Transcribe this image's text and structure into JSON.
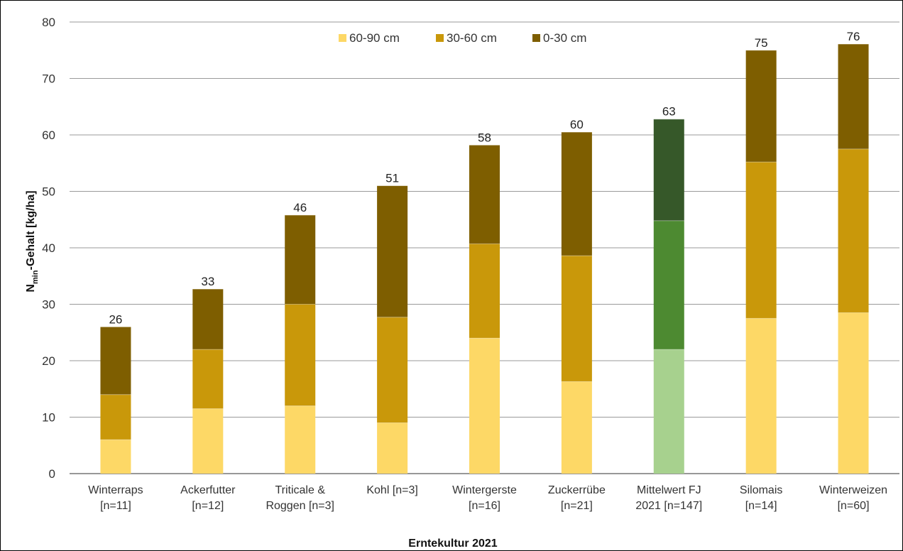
{
  "chart_data": {
    "type": "bar",
    "stacked": true,
    "xlabel": "Erntekultur 2021",
    "ylabel": "Gehalt [kg/ha]",
    "ylabel_prefix": "N",
    "ylabel_subscript": "min",
    "ylim": [
      0,
      80
    ],
    "yticks": [
      0,
      10,
      20,
      30,
      40,
      50,
      60,
      70,
      80
    ],
    "grid": true,
    "legend_position": "top-center",
    "categories": [
      [
        "Winterraps",
        "[n=11]"
      ],
      [
        "Ackerfutter",
        "[n=12]"
      ],
      [
        "Triticale  &",
        "Roggen [n=3]"
      ],
      [
        "Kohl [n=3]"
      ],
      [
        "Wintergerste",
        "[n=16]"
      ],
      [
        "Zuckerrübe",
        "[n=21]"
      ],
      [
        "Mittelwert FJ",
        "2021 [n=147]"
      ],
      [
        "Silomais",
        "[n=14]"
      ],
      [
        "Winterweizen",
        "[n=60]"
      ]
    ],
    "series": [
      {
        "name": "60-90 cm",
        "color": "#fdd866",
        "values": [
          6,
          11.5,
          12,
          9,
          24,
          16.3,
          22,
          27.5,
          28.5
        ]
      },
      {
        "name": "30-60 cm",
        "color": "#c9980a",
        "values": [
          8,
          10.5,
          18,
          18.7,
          16.7,
          22.3,
          22.8,
          27.7,
          29
        ]
      },
      {
        "name": "0-30 cm",
        "color": "#7e5e00",
        "values": [
          12,
          10.7,
          15.8,
          23.3,
          17.5,
          21.9,
          18,
          19.8,
          18.6
        ]
      }
    ],
    "highlight_category_index": 6,
    "highlight_colors": [
      "#a7d18e",
      "#4d8a31",
      "#365829"
    ],
    "totals": [
      "26",
      "33",
      "46",
      "51",
      "58",
      "60",
      "63",
      "75",
      "76"
    ]
  }
}
